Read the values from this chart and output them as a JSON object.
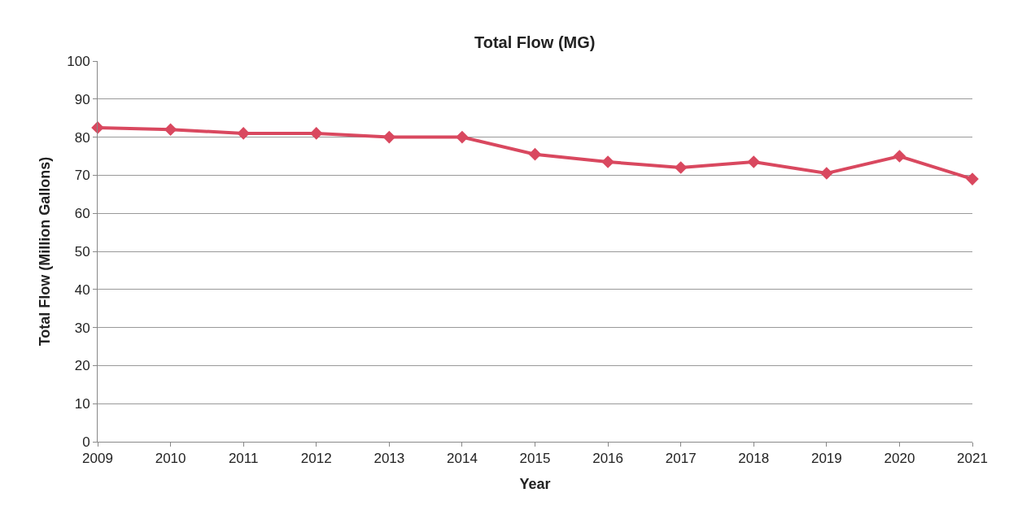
{
  "chart_data": {
    "type": "line",
    "title": "Total Flow (MG)",
    "xlabel": "Year",
    "ylabel": "Total Flow (Million Gallons)",
    "x": [
      2009,
      2010,
      2011,
      2012,
      2013,
      2014,
      2015,
      2016,
      2017,
      2018,
      2019,
      2020,
      2021
    ],
    "series": [
      {
        "color": "#d9485f",
        "values": [
          82.5,
          82,
          81,
          81,
          80,
          80,
          75.5,
          73.5,
          72,
          73.5,
          70.5,
          75,
          69
        ]
      }
    ],
    "xlim": [
      2009,
      2021
    ],
    "xticks": [
      2009,
      2010,
      2011,
      2012,
      2013,
      2014,
      2015,
      2016,
      2017,
      2018,
      2019,
      2020,
      2021
    ],
    "ylim": [
      0,
      100
    ],
    "yticks": [
      0,
      10,
      20,
      30,
      40,
      50,
      60,
      70,
      80,
      90,
      100
    ],
    "grid": "y",
    "marker": "diamond",
    "line_style": "solid"
  }
}
